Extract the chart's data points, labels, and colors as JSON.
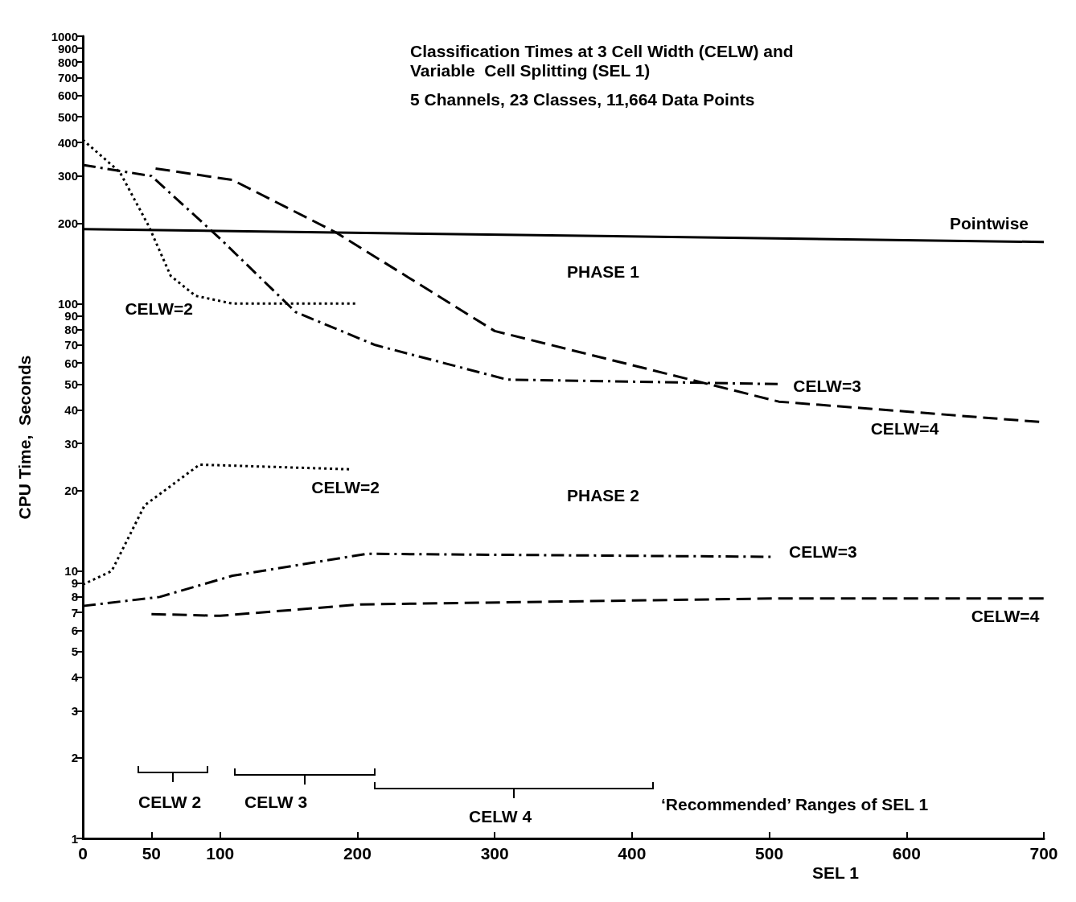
{
  "chart_data": {
    "type": "line",
    "title": "Classification Times at 3 Cell Width (CELW) and\nVariable  Cell Splitting (SEL 1)",
    "subtitle": "5 Channels, 23 Classes, 11,664 Data Points",
    "xlabel": "SEL 1",
    "ylabel": "CPU Time,  Seconds",
    "log": "y",
    "grid": false,
    "legend": false,
    "marker": "none",
    "xlim": [
      0,
      700
    ],
    "xticks": [
      0,
      50,
      100,
      200,
      300,
      400,
      500,
      600,
      700
    ],
    "ylim": [
      1,
      1000
    ],
    "yticks": [
      1,
      2,
      3,
      4,
      5,
      6,
      7,
      8,
      9,
      10,
      20,
      30,
      40,
      50,
      60,
      70,
      80,
      90,
      100,
      200,
      300,
      400,
      500,
      600,
      700,
      800,
      900,
      1000
    ],
    "series": [
      {
        "name": "Pointwise",
        "color": "#000000",
        "line_style": "solid",
        "x": [
          0,
          700
        ],
        "values": [
          190,
          170
        ]
      },
      {
        "name": "CELW=2",
        "color": "#000000",
        "line_style": "dotted",
        "x": [
          0,
          27,
          48,
          64,
          82,
          109,
          199
        ],
        "values": [
          410,
          310,
          195,
          127,
          107,
          100,
          100
        ]
      },
      {
        "name": "CELW=3",
        "color": "#000000",
        "line_style": "dashdot",
        "x": [
          0,
          50,
          100,
          155,
          213,
          309,
          507
        ],
        "values": [
          330,
          300,
          175,
          93,
          70,
          52,
          50
        ]
      },
      {
        "name": "CELW=4",
        "color": "#000000",
        "line_style": "dashed",
        "x": [
          53,
          109,
          184,
          300,
          507,
          700
        ],
        "values": [
          320,
          290,
          185,
          79,
          43,
          36
        ]
      },
      {
        "name": "CELW=2",
        "color": "#000000",
        "line_style": "dotted",
        "x": [
          0,
          21,
          45,
          85,
          196
        ],
        "values": [
          8.9,
          10,
          17.6,
          25,
          24
        ]
      },
      {
        "name": "CELW=3",
        "color": "#000000",
        "line_style": "dashdot",
        "x": [
          0,
          56,
          109,
          207,
          501
        ],
        "values": [
          7.4,
          8,
          9.6,
          11.6,
          11.3
        ]
      },
      {
        "name": "CELW=4",
        "color": "#000000",
        "line_style": "dashed",
        "x": [
          50,
          100,
          202,
          507,
          700
        ],
        "values": [
          6.9,
          6.8,
          7.5,
          7.9,
          7.9
        ]
      }
    ],
    "annotations": [
      "PHASE 1",
      "PHASE 2",
      "CELW 2",
      "CELW 3",
      "CELW 4",
      "‘Recommended’ Ranges of SEL 1"
    ]
  }
}
